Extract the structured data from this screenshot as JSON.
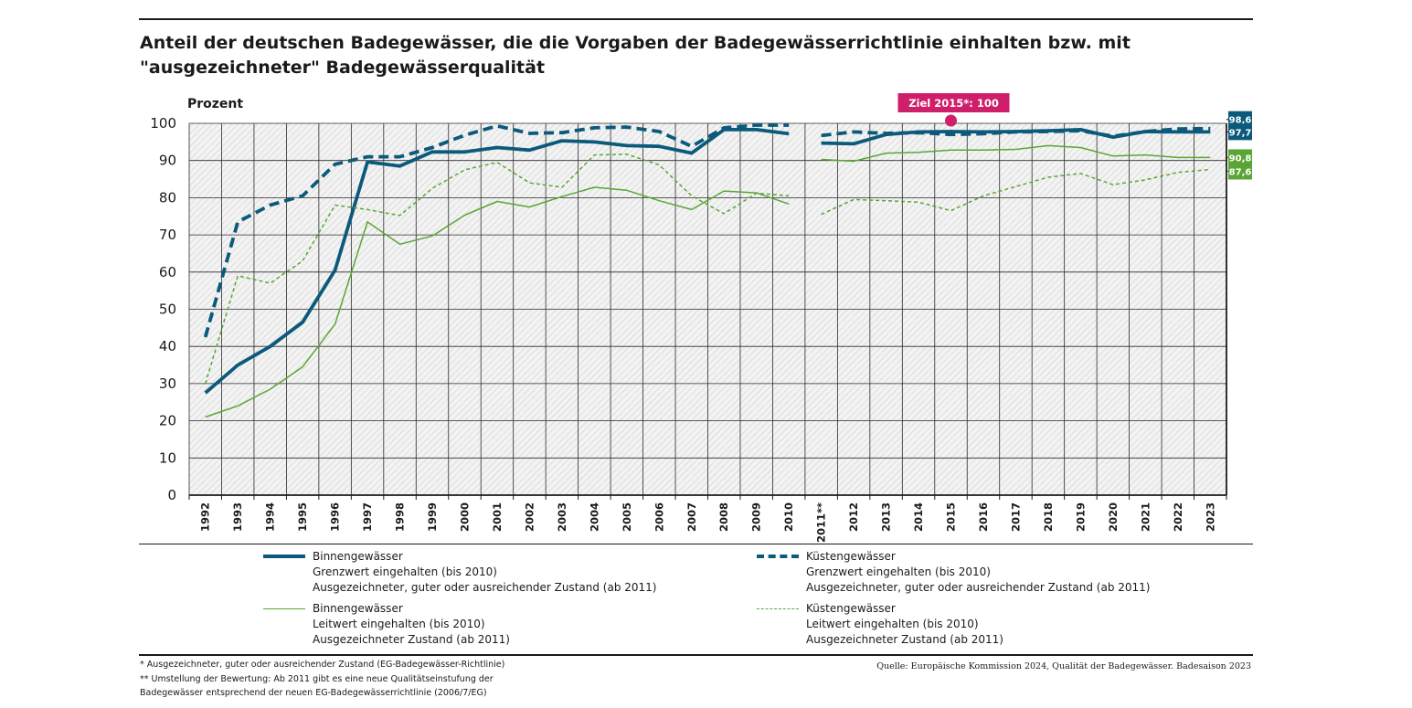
{
  "title": "Anteil der deutschen Badegewässer, die die Vorgaben der Badegewässerrichtlinie einhalten bzw. mit \"ausgezeichneter\" Badegewässerqualität",
  "chart_data": {
    "type": "line",
    "title": "Anteil der deutschen Badegewässer, die die Vorgaben der Badegewässerrichtlinie einhalten bzw. mit \"ausgezeichneter\" Badegewässerqualität",
    "ylabel": "Prozent",
    "ylim": [
      0,
      100
    ],
    "yticks": [
      0,
      10,
      20,
      30,
      40,
      50,
      60,
      70,
      80,
      90,
      100
    ],
    "grid": true,
    "categories": [
      "1992",
      "1993",
      "1994",
      "1995",
      "1996",
      "1997",
      "1998",
      "1999",
      "2000",
      "2001",
      "2002",
      "2003",
      "2004",
      "2005",
      "2006",
      "2007",
      "2008",
      "2009",
      "2010",
      "2011**",
      "2012",
      "2013",
      "2014",
      "2015",
      "2016",
      "2017",
      "2018",
      "2019",
      "2020",
      "2021",
      "2022",
      "2023"
    ],
    "series": [
      {
        "id": "binnen_grenz",
        "values": [
          27.5,
          35,
          40,
          46.5,
          60.5,
          89.6,
          88.5,
          92.3,
          92.3,
          93.5,
          92.8,
          95.3,
          95,
          94,
          93.8,
          92,
          98.3,
          98.3,
          97.2,
          94.7,
          94.5,
          97,
          97.7,
          97.8,
          97.7,
          97.8,
          98,
          98.3,
          96.3,
          97.8,
          97.7,
          97.7
        ],
        "color": "#0b5a7b",
        "style": "solid-thick"
      },
      {
        "id": "kuesten_grenz",
        "values": [
          42.5,
          73.5,
          78,
          80.5,
          89,
          91,
          91,
          93.5,
          96.8,
          99.3,
          97.3,
          97.5,
          98.8,
          99,
          97.8,
          93.8,
          98.8,
          99.5,
          99.5,
          96.7,
          97.7,
          97.3,
          97.5,
          97,
          97.2,
          97.7,
          97.8,
          98,
          96.5,
          97.8,
          98.5,
          98.6
        ],
        "color": "#0b5a7b",
        "style": "dashed-thick"
      },
      {
        "id": "binnen_leit",
        "values": [
          21,
          24,
          28.5,
          34.5,
          46,
          73.5,
          67.5,
          69.7,
          75.3,
          79,
          77.5,
          80.3,
          82.8,
          82,
          79.2,
          76.8,
          81.8,
          81.3,
          78.3,
          90.3,
          89.8,
          92,
          92.2,
          92.8,
          92.8,
          93,
          94,
          93.5,
          91.2,
          91.5,
          90.8,
          90.8
        ],
        "color": "#5aa634",
        "style": "solid-thin"
      },
      {
        "id": "kuesten_leit",
        "values": [
          30,
          59,
          57,
          63,
          78,
          76.8,
          75.2,
          82.5,
          87.5,
          89.5,
          84,
          82.8,
          91.5,
          91.7,
          88.8,
          80.5,
          75.7,
          81.2,
          80.5,
          75.5,
          79.5,
          79.2,
          78.8,
          76.5,
          80.5,
          83,
          85.5,
          86.5,
          83.5,
          84.8,
          86.8,
          87.6
        ],
        "color": "#5aa634",
        "style": "dashed-thin"
      }
    ],
    "end_labels": [
      {
        "text": "98,6",
        "value": 98.6,
        "color": "#0b5a7b"
      },
      {
        "text": "97,7",
        "value": 97.7,
        "color": "#0b5a7b"
      },
      {
        "text": "90,8",
        "value": 90.8,
        "color": "#5aa634"
      },
      {
        "text": "87,6",
        "value": 87.6,
        "color": "#5aa634"
      }
    ],
    "target": {
      "label": "Ziel 2015*: 100",
      "year": "2015",
      "value": 100,
      "color": "#cf1f6b"
    },
    "legend_placement": "bottom"
  },
  "legend": [
    {
      "series": "binnen_grenz",
      "lines": [
        "Binnengewässer",
        "Grenzwert eingehalten (bis 2010)",
        "Ausgezeichneter, guter oder ausreichender Zustand (ab 2011)"
      ]
    },
    {
      "series": "kuesten_grenz",
      "lines": [
        "Küstengewässer",
        "Grenzwert eingehalten (bis 2010)",
        "Ausgezeichneter, guter oder ausreichender Zustand (ab 2011)"
      ]
    },
    {
      "series": "binnen_leit",
      "lines": [
        "Binnengewässer",
        "Leitwert eingehalten (bis 2010)",
        "Ausgezeichneter Zustand (ab 2011)"
      ]
    },
    {
      "series": "kuesten_leit",
      "lines": [
        "Küstengewässer",
        "Leitwert eingehalten (bis 2010)",
        "Ausgezeichneter Zustand (ab 2011)"
      ]
    }
  ],
  "footnotes": [
    "* Ausgezeichneter, guter oder ausreichender Zustand (EG-Badegewässer-Richtlinie)",
    "** Umstellung der Bewertung: Ab 2011 gibt es eine neue Qualitätseinstufung der",
    "Badegewässer entsprechend der neuen EG-Badegewässerrichtlinie (2006/7/EG)"
  ],
  "source": "Quelle: Europäische Kommission 2024, Qualität der Badegewässer. Badesaison 2023"
}
